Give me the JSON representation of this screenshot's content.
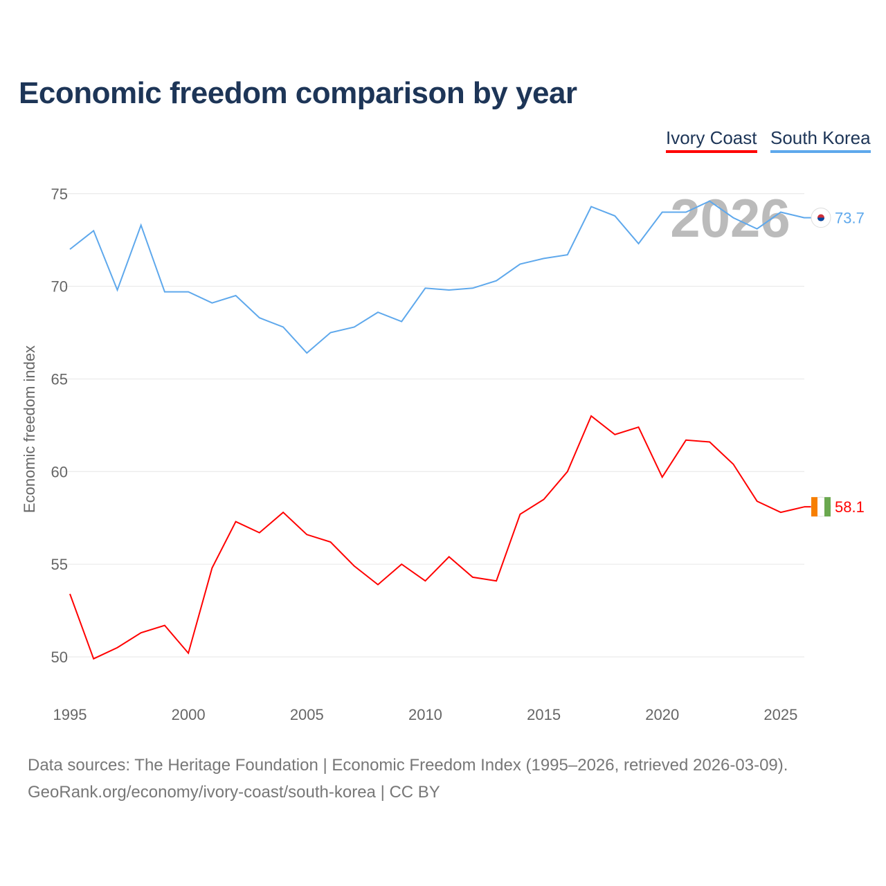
{
  "title": "Economic freedom comparison by year",
  "legend": [
    "Ivory Coast",
    "South Korea"
  ],
  "source_line1": "Data sources: The Heritage Foundation | Economic Freedom Index (1995–2026, retrieved 2026-03-09).",
  "source_line2": "GeoRank.org/economy/ivory-coast/south-korea | CC BY",
  "year_watermark": "2026",
  "chart_data": {
    "type": "line",
    "title": "Economic freedom comparison by year",
    "xlabel": "",
    "ylabel": "Economic freedom index",
    "xlim": [
      1995,
      2026
    ],
    "ylim": [
      48.5,
      76
    ],
    "xticks": [
      1995,
      2000,
      2005,
      2010,
      2015,
      2020,
      2025
    ],
    "yticks": [
      50,
      55,
      60,
      65,
      70,
      75
    ],
    "grid": true,
    "legend_position": "top-right",
    "x": [
      1995,
      1996,
      1997,
      1998,
      1999,
      2000,
      2001,
      2002,
      2003,
      2004,
      2005,
      2006,
      2007,
      2008,
      2009,
      2010,
      2011,
      2012,
      2013,
      2014,
      2015,
      2016,
      2017,
      2018,
      2019,
      2020,
      2021,
      2022,
      2023,
      2024,
      2025,
      2026
    ],
    "series": [
      {
        "name": "Ivory Coast",
        "color": "#ff0000",
        "end_label": "58.1",
        "values": [
          53.4,
          49.9,
          50.5,
          51.3,
          51.7,
          50.2,
          54.8,
          57.3,
          56.7,
          57.8,
          56.6,
          56.2,
          54.9,
          53.9,
          55.0,
          54.1,
          55.4,
          54.3,
          54.1,
          57.7,
          58.5,
          60.0,
          63.0,
          62.0,
          62.4,
          59.7,
          61.7,
          61.6,
          60.4,
          58.4,
          57.8,
          58.1
        ]
      },
      {
        "name": "South Korea",
        "color": "#5ea8ec",
        "end_label": "73.7",
        "values": [
          72.0,
          73.0,
          69.8,
          73.3,
          69.7,
          69.7,
          69.1,
          69.5,
          68.3,
          67.8,
          66.4,
          67.5,
          67.8,
          68.6,
          68.1,
          69.9,
          69.8,
          69.9,
          70.3,
          71.2,
          71.5,
          71.7,
          74.3,
          73.8,
          72.3,
          74.0,
          74.0,
          74.6,
          73.7,
          73.1,
          74.0,
          73.7
        ]
      }
    ]
  }
}
